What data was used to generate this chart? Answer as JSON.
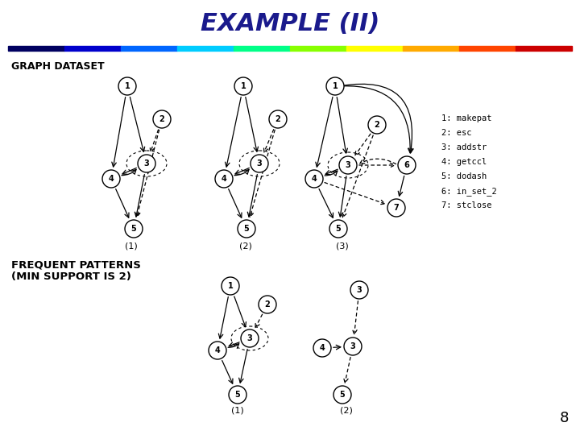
{
  "title": "EXAMPLE (II)",
  "title_color": "#1a1a8c",
  "title_fontsize": 22,
  "background_color": "#ffffff",
  "section_label_graph": "GRAPH DATASET",
  "section_label_patterns": "FREQUENT PATTERNS\n(MIN SUPPORT IS 2)",
  "legend_items": [
    "1: makepat",
    "2: esc",
    "3: addstr",
    "4: getccl",
    "5: dodash",
    "6: in_set_2",
    "7: stclose"
  ],
  "page_number": "8",
  "rainbow_segments": [
    "#000060",
    "#0000cc",
    "#0066ff",
    "#00ccff",
    "#00ff88",
    "#88ff00",
    "#ffff00",
    "#ffaa00",
    "#ff4400",
    "#cc0000"
  ]
}
